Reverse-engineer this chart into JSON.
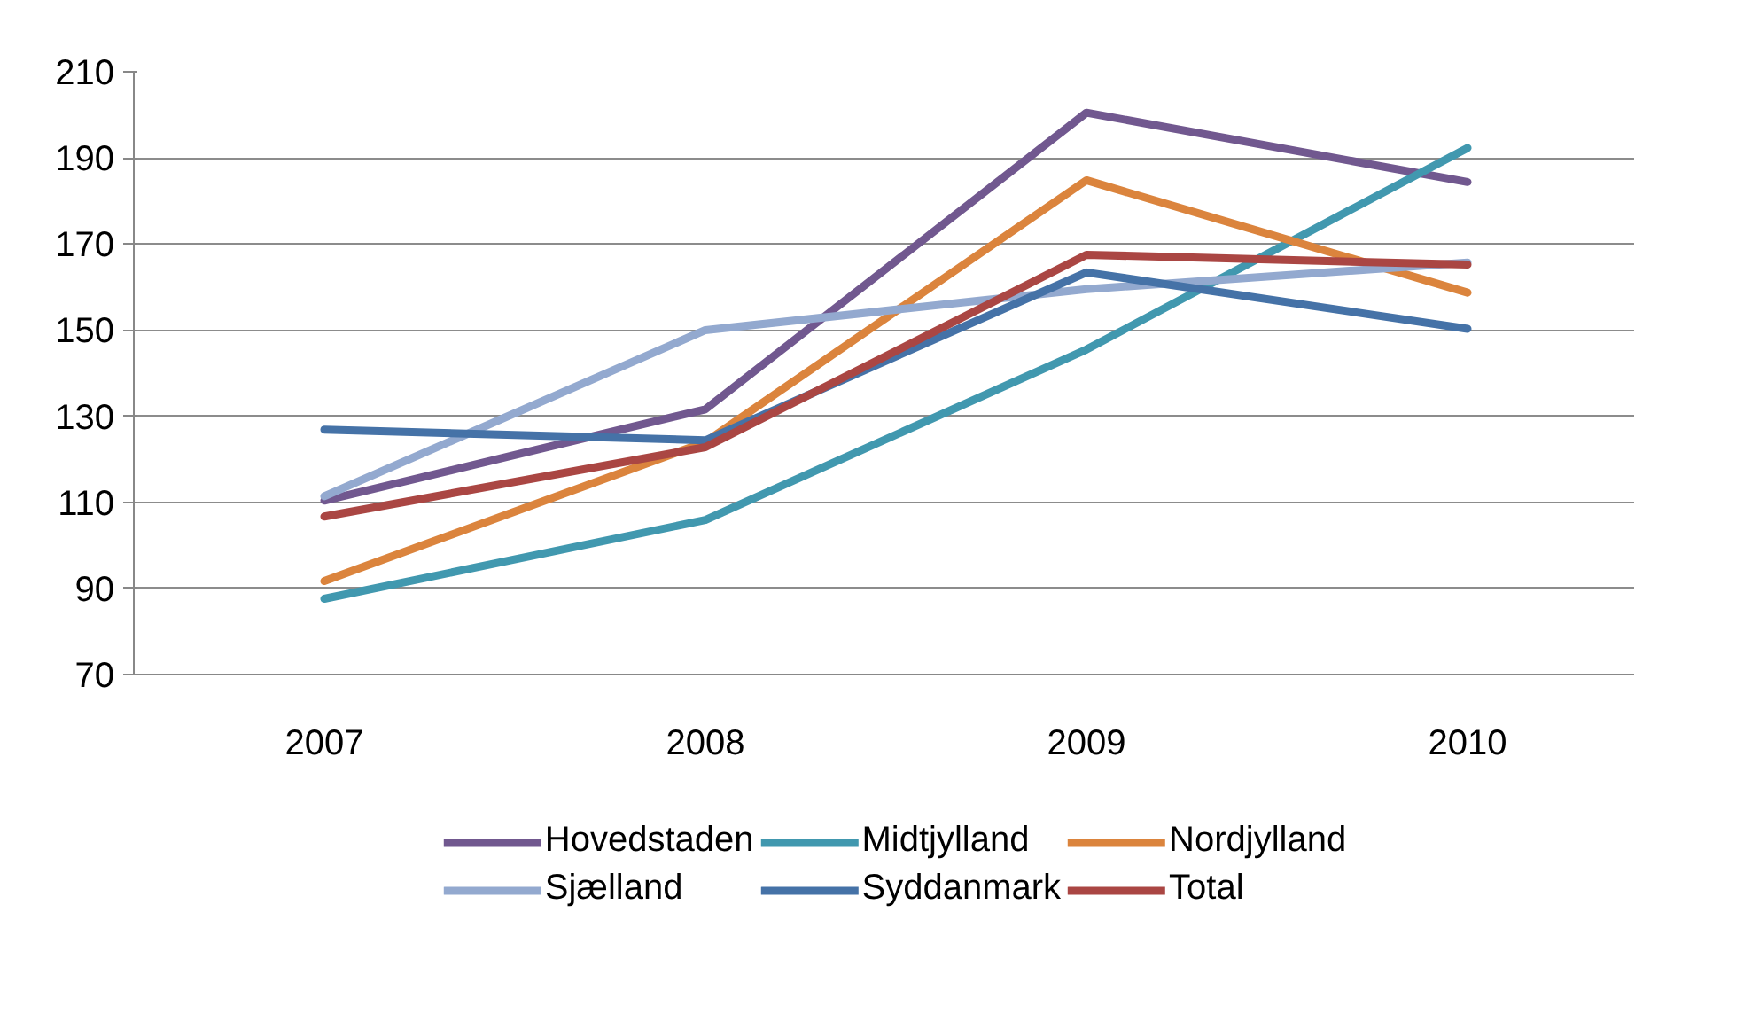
{
  "chart_data": {
    "type": "line",
    "categories": [
      "2007",
      "2008",
      "2009",
      "2010"
    ],
    "series": [
      {
        "name": "Hovedstaden",
        "color": "#71588f",
        "values": [
          110.4,
          131.6,
          200.5,
          184.4
        ]
      },
      {
        "name": "Midtjylland",
        "color": "#4198af",
        "values": [
          87.6,
          105.9,
          145.5,
          192.3
        ]
      },
      {
        "name": "Nordjylland",
        "color": "#db843d",
        "values": [
          91.7,
          124,
          184.8,
          158.7
        ]
      },
      {
        "name": "Sjælland",
        "color": "#93a9cf",
        "values": [
          111.4,
          150,
          159.5,
          165.7
        ]
      },
      {
        "name": "Syddanmark",
        "color": "#4572a7",
        "values": [
          126.9,
          124.4,
          163.4,
          150.3
        ]
      },
      {
        "name": "Total",
        "color": "#aa4643",
        "values": [
          106.7,
          122.8,
          167.5,
          165.2
        ]
      }
    ],
    "ylim": [
      70,
      210
    ],
    "yticks": [
      70,
      90,
      110,
      130,
      150,
      170,
      190,
      210
    ],
    "grid": "y",
    "legend": "bottom",
    "marker": "none",
    "line_style": "solid"
  }
}
